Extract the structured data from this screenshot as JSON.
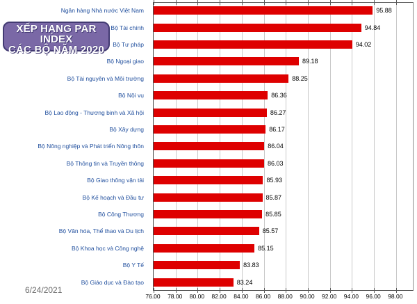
{
  "page": {
    "date": "6/24/2021"
  },
  "title_box": {
    "lines": [
      "XẾP HẠNG PAR",
      "INDEX",
      "CÁC BỘ NĂM 2020"
    ]
  },
  "chart_data": {
    "type": "bar",
    "orientation": "horizontal",
    "title": "XẾP HẠNG PAR INDEX CÁC BỘ NĂM 2020",
    "xlabel": "",
    "ylabel": "",
    "xlim": [
      76,
      98
    ],
    "grid": true,
    "legend_position": "none",
    "bar_color": "#de0000",
    "category_label_color": "#1f4e9d",
    "value_label_color": "#000000",
    "x_ticks": [
      "76.00",
      "78.00",
      "80.00",
      "82.00",
      "84.00",
      "86.00",
      "88.00",
      "90.00",
      "92.00",
      "94.00",
      "96.00",
      "98.00"
    ],
    "categories": [
      "Ngân hàng Nhà nước Việt Nam",
      "Bộ Tài chính",
      "Bộ Tư pháp",
      "Bộ Ngoại giao",
      "Bộ Tài nguyên và Môi trường",
      "Bộ Nội vụ",
      "Bộ Lao động - Thương binh và Xã hội",
      "Bộ Xây dựng",
      "Bộ Nông nghiệp và Phát triển Nông thôn",
      "Bộ Thông tin và Truyền thông",
      "Bộ Giao thông vận tải",
      "Bộ Kế hoạch và Đầu tư",
      "Bộ Công Thương",
      "Bộ Văn hóa, Thể thao và Du lịch",
      "Bộ Khoa học và Công nghệ",
      "Bộ Y Tế",
      "Bộ Giáo dục và Đào tạo"
    ],
    "values": [
      95.88,
      94.84,
      94.02,
      89.18,
      88.25,
      86.36,
      86.27,
      86.17,
      86.04,
      86.03,
      85.93,
      85.87,
      85.85,
      85.57,
      85.15,
      83.83,
      83.24
    ]
  }
}
